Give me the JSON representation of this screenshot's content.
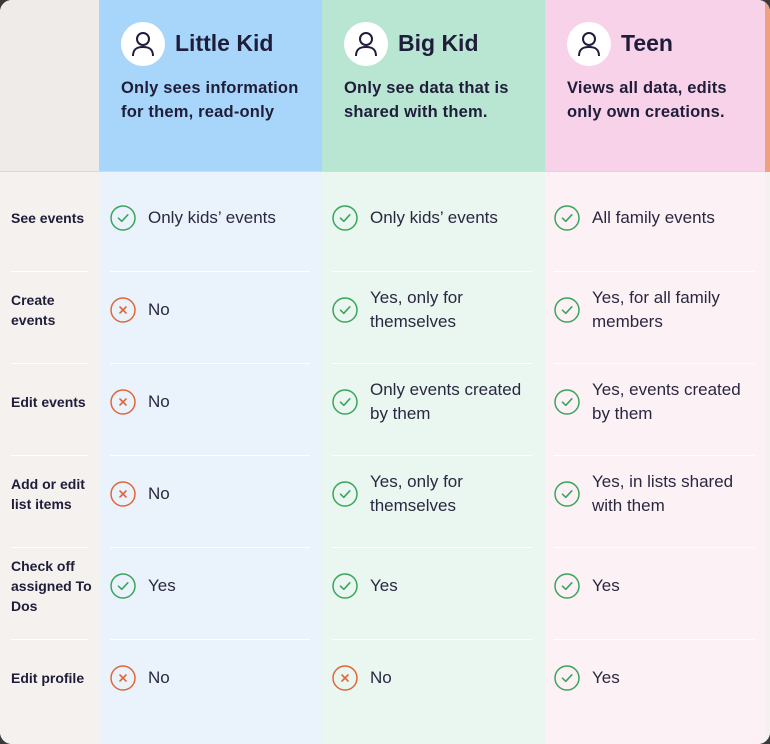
{
  "columns": [
    {
      "title": "Little Kid",
      "description": "Only sees information for them, read-only"
    },
    {
      "title": "Big Kid",
      "description": "Only see data that is shared with them."
    },
    {
      "title": "Teen",
      "description": "Views all data, edits only own creations."
    }
  ],
  "rows": [
    {
      "label": "See events",
      "cells": [
        {
          "status": "yes",
          "text": "Only kids’ events"
        },
        {
          "status": "yes",
          "text": "Only kids’ events"
        },
        {
          "status": "yes",
          "text": "All family events"
        }
      ]
    },
    {
      "label": "Create events",
      "cells": [
        {
          "status": "no",
          "text": "No"
        },
        {
          "status": "yes",
          "text": "Yes, only for themselves"
        },
        {
          "status": "yes",
          "text": "Yes, for all family members"
        }
      ]
    },
    {
      "label": "Edit events",
      "cells": [
        {
          "status": "no",
          "text": "No"
        },
        {
          "status": "yes",
          "text": "Only events created by them"
        },
        {
          "status": "yes",
          "text": "Yes, events created by them"
        }
      ]
    },
    {
      "label": "Add or edit list items",
      "cells": [
        {
          "status": "no",
          "text": "No"
        },
        {
          "status": "yes",
          "text": "Yes, only for themselves"
        },
        {
          "status": "yes",
          "text": "Yes, in lists shared with them"
        }
      ]
    },
    {
      "label": "Check off assigned To Dos",
      "cells": [
        {
          "status": "yes",
          "text": "Yes"
        },
        {
          "status": "yes",
          "text": "Yes"
        },
        {
          "status": "yes",
          "text": "Yes"
        }
      ]
    },
    {
      "label": "Edit profile",
      "cells": [
        {
          "status": "no",
          "text": "No"
        },
        {
          "status": "no",
          "text": "No"
        },
        {
          "status": "yes",
          "text": "Yes"
        }
      ]
    }
  ],
  "colors": {
    "yes": "#3aa55d",
    "no": "#e0673a",
    "little_header": "#a8d6fb",
    "big_header": "#b8e6d2",
    "teen_header": "#f7d2e8",
    "text": "#1f1d3a"
  },
  "icons": {
    "yes": "check-circle-icon",
    "no": "x-circle-icon",
    "avatar": "user-icon"
  }
}
